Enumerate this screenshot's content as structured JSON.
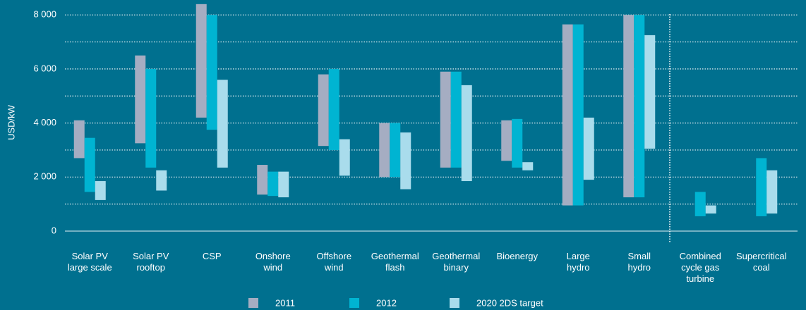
{
  "chart_data": {
    "type": "floating-bar",
    "y_axis_label": "USD/kW",
    "categories": [
      "Solar PV\nlarge scale",
      "Solar PV\nrooftop",
      "CSP",
      "Onshore\nwind",
      "Offshore\nwind",
      "Geothermal\nflash",
      "Geothermal\nbinary",
      "Bioenergy",
      "Large\nhydro",
      "Small\nhydro",
      "Combined\ncycle gas\nturbine",
      "Supercritical\ncoal"
    ],
    "series": [
      {
        "name": "2011",
        "color": "#a5adc2",
        "values": [
          [
            2700,
            4100
          ],
          [
            3250,
            6500
          ],
          [
            4200,
            8400
          ],
          [
            1350,
            2450
          ],
          [
            3150,
            5800
          ],
          [
            2000,
            4000
          ],
          [
            2350,
            5900
          ],
          [
            2600,
            4100
          ],
          [
            950,
            7650
          ],
          [
            1250,
            8000
          ],
          null,
          null
        ]
      },
      {
        "name": "2012",
        "color": "#00b4d2",
        "values": [
          [
            1450,
            3450
          ],
          [
            2350,
            6000
          ],
          [
            3750,
            8000
          ],
          [
            1300,
            2200
          ],
          [
            3000,
            6000
          ],
          [
            2000,
            4000
          ],
          [
            2350,
            5900
          ],
          [
            2350,
            4150
          ],
          [
            950,
            7650
          ],
          [
            1250,
            8000
          ],
          [
            550,
            1450
          ],
          [
            550,
            2700
          ]
        ]
      },
      {
        "name": "2020 2DS target",
        "color": "#a9dcec",
        "values": [
          [
            1150,
            1850
          ],
          [
            1500,
            2250
          ],
          [
            2350,
            5600
          ],
          [
            1250,
            2200
          ],
          [
            2050,
            3400
          ],
          [
            1550,
            3650
          ],
          [
            1850,
            5400
          ],
          [
            2250,
            2550
          ],
          [
            1900,
            4200
          ],
          [
            3050,
            7250
          ],
          [
            650,
            950
          ],
          [
            650,
            2250
          ]
        ]
      }
    ],
    "ylim": [
      0,
      8500
    ],
    "yticks": [
      {
        "value": 0,
        "label": "0"
      },
      {
        "value": 2000,
        "label": "2 000"
      },
      {
        "value": 4000,
        "label": "4 000"
      },
      {
        "value": 6000,
        "label": "6 000"
      },
      {
        "value": 8000,
        "label": "8 000"
      }
    ],
    "minor_yticks": [
      1000,
      3000,
      5000,
      7000
    ],
    "grid": true
  }
}
